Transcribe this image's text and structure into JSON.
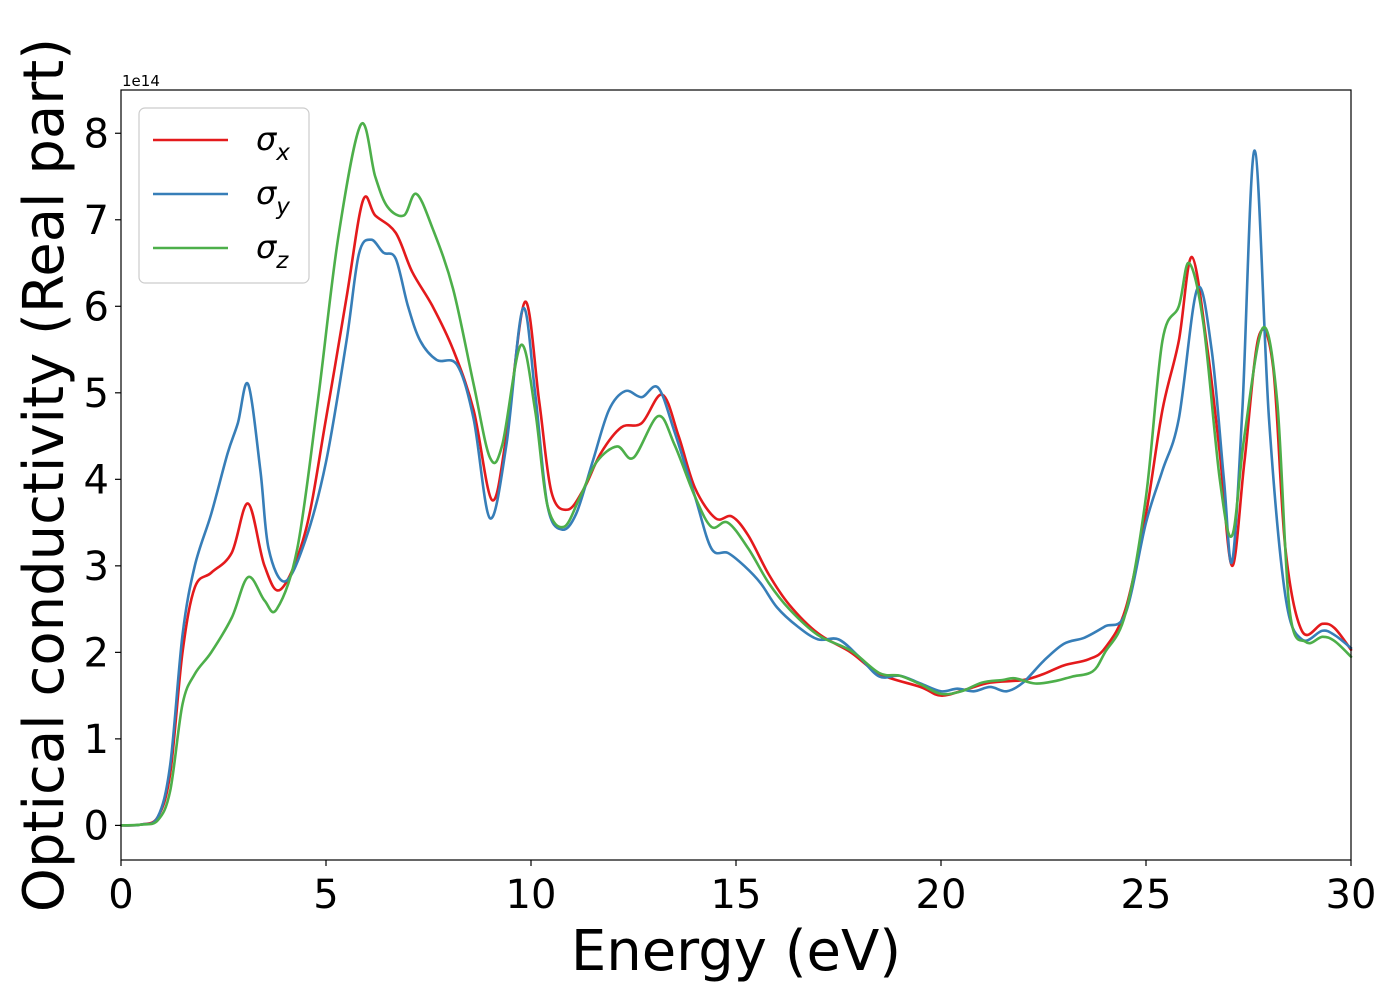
{
  "chart_data": {
    "type": "line",
    "xlabel": "Energy (eV)",
    "ylabel": "Optical conductivity (Real part)",
    "y_offset_label": "1e14",
    "xlim": [
      0,
      30
    ],
    "ylim": [
      -0.4,
      8.5
    ],
    "xticks": [
      0,
      5,
      10,
      15,
      20,
      25,
      30
    ],
    "xtick_labels": [
      "0",
      "5",
      "10",
      "15",
      "20",
      "25",
      "30"
    ],
    "yticks": [
      0,
      1,
      2,
      3,
      4,
      5,
      6,
      7,
      8
    ],
    "ytick_labels": [
      "0",
      "1",
      "2",
      "3",
      "4",
      "5",
      "6",
      "7",
      "8"
    ],
    "grid": false,
    "legend_position": "top-left",
    "series": [
      {
        "name": "σx",
        "symbol": "σ",
        "subscript": "x",
        "color": "#e41a1c",
        "points": [
          [
            0,
            0
          ],
          [
            0.5,
            0.01
          ],
          [
            0.9,
            0.1
          ],
          [
            1.2,
            0.6
          ],
          [
            1.5,
            2.0
          ],
          [
            1.8,
            2.75
          ],
          [
            2.2,
            2.92
          ],
          [
            2.7,
            3.15
          ],
          [
            3.1,
            3.72
          ],
          [
            3.5,
            3.0
          ],
          [
            3.9,
            2.73
          ],
          [
            4.5,
            3.4
          ],
          [
            5.0,
            4.7
          ],
          [
            5.5,
            6.1
          ],
          [
            5.9,
            7.22
          ],
          [
            6.2,
            7.05
          ],
          [
            6.7,
            6.85
          ],
          [
            7.1,
            6.4
          ],
          [
            7.6,
            6.0
          ],
          [
            8.1,
            5.5
          ],
          [
            8.6,
            4.8
          ],
          [
            9.05,
            3.76
          ],
          [
            9.4,
            4.5
          ],
          [
            9.85,
            6.05
          ],
          [
            10.2,
            4.9
          ],
          [
            10.5,
            3.85
          ],
          [
            10.9,
            3.65
          ],
          [
            11.3,
            3.9
          ],
          [
            11.7,
            4.3
          ],
          [
            12.2,
            4.6
          ],
          [
            12.7,
            4.65
          ],
          [
            13.2,
            4.98
          ],
          [
            13.6,
            4.5
          ],
          [
            14.0,
            3.9
          ],
          [
            14.5,
            3.55
          ],
          [
            14.9,
            3.57
          ],
          [
            15.3,
            3.35
          ],
          [
            15.8,
            2.9
          ],
          [
            16.3,
            2.55
          ],
          [
            17.0,
            2.22
          ],
          [
            17.8,
            2.0
          ],
          [
            18.5,
            1.75
          ],
          [
            19.5,
            1.6
          ],
          [
            20.0,
            1.5
          ],
          [
            20.6,
            1.57
          ],
          [
            21.2,
            1.65
          ],
          [
            22.0,
            1.68
          ],
          [
            22.5,
            1.75
          ],
          [
            23.0,
            1.85
          ],
          [
            23.6,
            1.92
          ],
          [
            24.0,
            2.05
          ],
          [
            24.5,
            2.5
          ],
          [
            25.0,
            3.6
          ],
          [
            25.4,
            4.8
          ],
          [
            25.8,
            5.6
          ],
          [
            26.12,
            6.57
          ],
          [
            26.5,
            5.5
          ],
          [
            26.8,
            4.3
          ],
          [
            27.1,
            3.0
          ],
          [
            27.4,
            4.2
          ],
          [
            27.75,
            5.65
          ],
          [
            28.1,
            5.3
          ],
          [
            28.4,
            3.2
          ],
          [
            28.8,
            2.25
          ],
          [
            29.3,
            2.33
          ],
          [
            29.6,
            2.28
          ],
          [
            30.0,
            2.03
          ]
        ]
      },
      {
        "name": "σy",
        "symbol": "σ",
        "subscript": "y",
        "color": "#377eb8",
        "points": [
          [
            0,
            0
          ],
          [
            0.5,
            0.01
          ],
          [
            0.9,
            0.1
          ],
          [
            1.2,
            0.7
          ],
          [
            1.5,
            2.2
          ],
          [
            1.8,
            3.0
          ],
          [
            2.2,
            3.6
          ],
          [
            2.6,
            4.3
          ],
          [
            2.85,
            4.65
          ],
          [
            3.1,
            5.1
          ],
          [
            3.4,
            4.1
          ],
          [
            3.6,
            3.2
          ],
          [
            4.0,
            2.82
          ],
          [
            4.5,
            3.3
          ],
          [
            5.0,
            4.2
          ],
          [
            5.5,
            5.6
          ],
          [
            5.8,
            6.6
          ],
          [
            6.1,
            6.77
          ],
          [
            6.4,
            6.62
          ],
          [
            6.7,
            6.55
          ],
          [
            7.0,
            6.0
          ],
          [
            7.3,
            5.6
          ],
          [
            7.7,
            5.38
          ],
          [
            8.2,
            5.32
          ],
          [
            8.6,
            4.7
          ],
          [
            9.0,
            3.55
          ],
          [
            9.4,
            4.4
          ],
          [
            9.8,
            5.97
          ],
          [
            10.1,
            5.0
          ],
          [
            10.4,
            3.7
          ],
          [
            10.75,
            3.42
          ],
          [
            11.1,
            3.6
          ],
          [
            11.5,
            4.2
          ],
          [
            11.9,
            4.8
          ],
          [
            12.3,
            5.02
          ],
          [
            12.7,
            4.95
          ],
          [
            13.1,
            5.06
          ],
          [
            13.5,
            4.55
          ],
          [
            14.0,
            3.8
          ],
          [
            14.4,
            3.2
          ],
          [
            14.8,
            3.15
          ],
          [
            15.2,
            3.0
          ],
          [
            15.6,
            2.8
          ],
          [
            16.0,
            2.52
          ],
          [
            16.5,
            2.3
          ],
          [
            17.0,
            2.15
          ],
          [
            17.5,
            2.15
          ],
          [
            18.0,
            1.95
          ],
          [
            18.5,
            1.72
          ],
          [
            19.0,
            1.73
          ],
          [
            19.5,
            1.64
          ],
          [
            20.0,
            1.55
          ],
          [
            20.4,
            1.58
          ],
          [
            20.8,
            1.55
          ],
          [
            21.2,
            1.6
          ],
          [
            21.6,
            1.55
          ],
          [
            22.0,
            1.65
          ],
          [
            22.5,
            1.9
          ],
          [
            23.0,
            2.1
          ],
          [
            23.5,
            2.17
          ],
          [
            24.0,
            2.3
          ],
          [
            24.5,
            2.45
          ],
          [
            25.0,
            3.5
          ],
          [
            25.4,
            4.1
          ],
          [
            25.8,
            4.7
          ],
          [
            26.25,
            6.2
          ],
          [
            26.6,
            5.5
          ],
          [
            26.9,
            4.0
          ],
          [
            27.1,
            3.05
          ],
          [
            27.35,
            4.8
          ],
          [
            27.65,
            7.8
          ],
          [
            28.0,
            4.7
          ],
          [
            28.4,
            2.65
          ],
          [
            28.8,
            2.15
          ],
          [
            29.3,
            2.25
          ],
          [
            29.6,
            2.2
          ],
          [
            30.0,
            2.05
          ]
        ]
      },
      {
        "name": "σz",
        "symbol": "σ",
        "subscript": "z",
        "color": "#4daf4a",
        "points": [
          [
            0,
            0
          ],
          [
            0.5,
            0.01
          ],
          [
            0.9,
            0.06
          ],
          [
            1.2,
            0.4
          ],
          [
            1.5,
            1.4
          ],
          [
            1.8,
            1.75
          ],
          [
            2.2,
            2.0
          ],
          [
            2.7,
            2.4
          ],
          [
            3.1,
            2.87
          ],
          [
            3.5,
            2.6
          ],
          [
            3.8,
            2.5
          ],
          [
            4.3,
            3.2
          ],
          [
            4.8,
            4.9
          ],
          [
            5.3,
            6.8
          ],
          [
            5.85,
            8.1
          ],
          [
            6.2,
            7.5
          ],
          [
            6.5,
            7.15
          ],
          [
            6.9,
            7.05
          ],
          [
            7.2,
            7.3
          ],
          [
            7.6,
            6.9
          ],
          [
            8.1,
            6.2
          ],
          [
            8.6,
            5.1
          ],
          [
            9.0,
            4.25
          ],
          [
            9.3,
            4.4
          ],
          [
            9.75,
            5.55
          ],
          [
            10.1,
            4.8
          ],
          [
            10.4,
            3.7
          ],
          [
            10.8,
            3.45
          ],
          [
            11.2,
            3.8
          ],
          [
            11.6,
            4.2
          ],
          [
            12.1,
            4.38
          ],
          [
            12.5,
            4.25
          ],
          [
            13.1,
            4.73
          ],
          [
            13.5,
            4.4
          ],
          [
            14.0,
            3.8
          ],
          [
            14.4,
            3.45
          ],
          [
            14.8,
            3.5
          ],
          [
            15.3,
            3.2
          ],
          [
            15.8,
            2.8
          ],
          [
            16.3,
            2.5
          ],
          [
            17.0,
            2.2
          ],
          [
            17.8,
            2.02
          ],
          [
            18.5,
            1.76
          ],
          [
            19.0,
            1.73
          ],
          [
            19.5,
            1.63
          ],
          [
            20.0,
            1.52
          ],
          [
            20.5,
            1.55
          ],
          [
            21.0,
            1.65
          ],
          [
            21.5,
            1.68
          ],
          [
            21.8,
            1.7
          ],
          [
            22.3,
            1.64
          ],
          [
            22.8,
            1.67
          ],
          [
            23.2,
            1.72
          ],
          [
            23.7,
            1.78
          ],
          [
            24.0,
            2.0
          ],
          [
            24.5,
            2.45
          ],
          [
            25.0,
            3.8
          ],
          [
            25.4,
            5.6
          ],
          [
            25.8,
            6.0
          ],
          [
            26.05,
            6.5
          ],
          [
            26.4,
            5.8
          ],
          [
            26.8,
            4.0
          ],
          [
            27.1,
            3.35
          ],
          [
            27.4,
            4.5
          ],
          [
            27.85,
            5.75
          ],
          [
            28.2,
            4.9
          ],
          [
            28.5,
            2.5
          ],
          [
            28.9,
            2.12
          ],
          [
            29.3,
            2.18
          ],
          [
            29.6,
            2.13
          ],
          [
            30.0,
            1.95
          ]
        ]
      }
    ]
  }
}
